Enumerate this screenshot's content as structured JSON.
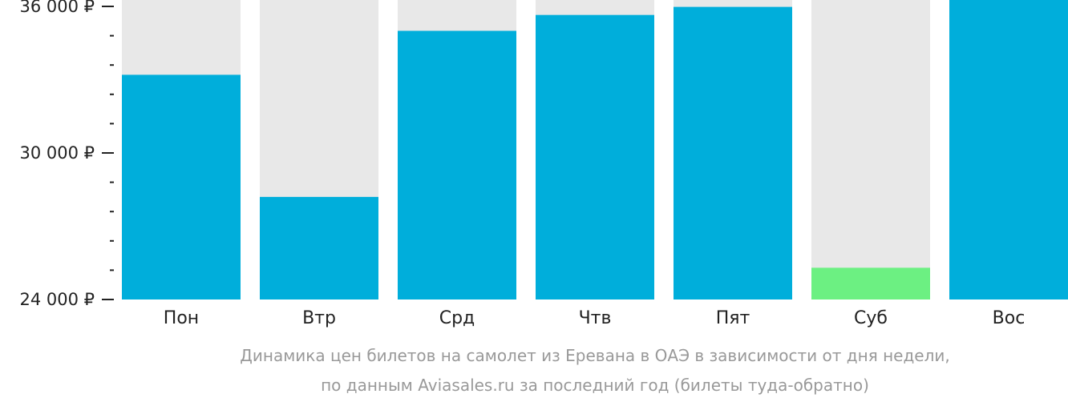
{
  "chart_data": {
    "type": "bar",
    "categories": [
      "Пон",
      "Втр",
      "Срд",
      "Чтв",
      "Пят",
      "Суб",
      "Вос"
    ],
    "values": [
      33200,
      28200,
      35000,
      35650,
      35980,
      25300,
      36340
    ],
    "highlight_index": 5,
    "ylim": [
      24000,
      36000
    ],
    "yticks": [
      24000,
      30000,
      36000
    ],
    "ytick_labels": [
      "24 000 ₽",
      "30 000 ₽",
      "36 000 ₽"
    ],
    "minor_ticks_per_interval": 5,
    "title": "",
    "xlabel": "",
    "ylabel": "",
    "grid": false,
    "colors": {
      "bar": "#00aedb",
      "highlight": "#6cf082",
      "background_bar": "#e8e8e8",
      "axis": "#222222",
      "caption": "#999999"
    }
  },
  "caption": {
    "line1": "Динамика цен билетов на самолет из Еревана в ОАЭ в зависимости от дня недели,",
    "line2": "по данным Aviasales.ru за последний год (билеты туда-обратно)"
  }
}
